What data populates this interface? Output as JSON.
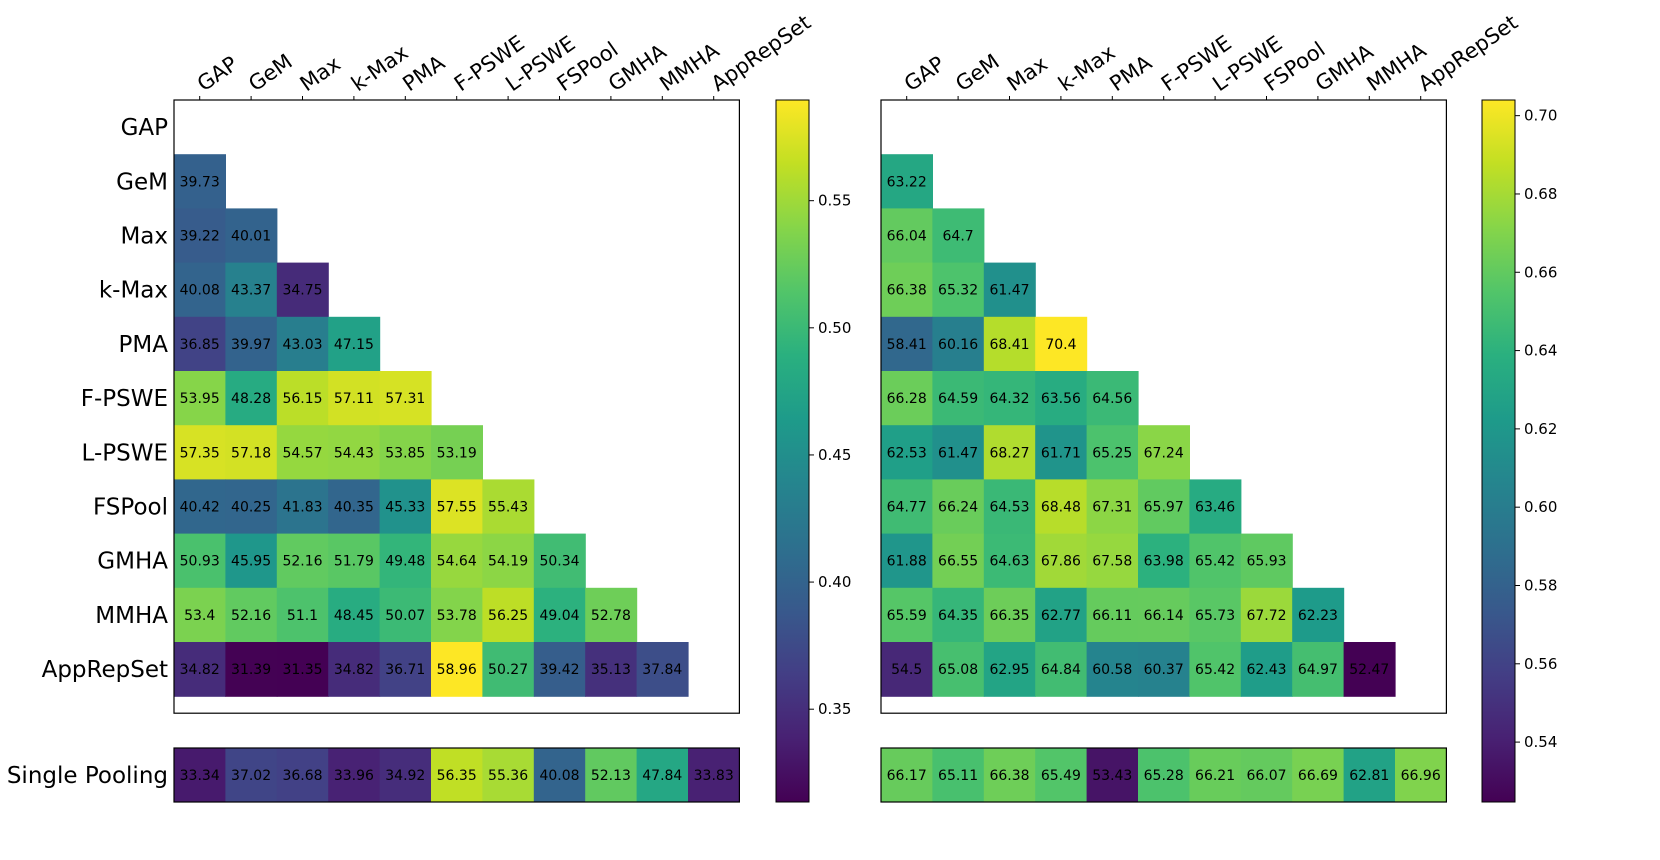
{
  "chart_data": [
    {
      "type": "heatmap",
      "title": "",
      "row_labels": [
        "GAP",
        "GeM",
        "Max",
        "k-Max",
        "PMA",
        "F-PSWE",
        "L-PSWE",
        "FSPool",
        "GMHA",
        "MMHA",
        "AppRepSet"
      ],
      "col_labels": [
        "GAP",
        "GeM",
        "Max",
        "k-Max",
        "PMA",
        "F-PSWE",
        "L-PSWE",
        "FSPool",
        "GMHA",
        "MMHA",
        "AppRepSet"
      ],
      "values": [
        [],
        [
          39.73
        ],
        [
          39.22,
          40.01
        ],
        [
          40.08,
          43.37,
          34.75
        ],
        [
          36.85,
          39.97,
          43.03,
          47.15
        ],
        [
          53.95,
          48.28,
          56.15,
          57.11,
          57.31
        ],
        [
          57.35,
          57.18,
          54.57,
          54.43,
          53.85,
          53.19
        ],
        [
          40.42,
          40.25,
          41.83,
          40.35,
          45.33,
          57.55,
          55.43
        ],
        [
          50.93,
          45.95,
          52.16,
          51.79,
          49.48,
          54.64,
          54.19,
          50.34
        ],
        [
          53.4,
          52.16,
          51.1,
          48.45,
          50.07,
          53.78,
          56.25,
          49.04,
          52.78
        ],
        [
          34.82,
          31.39,
          31.35,
          34.82,
          36.71,
          58.96,
          50.27,
          39.42,
          35.13,
          37.84
        ]
      ],
      "single_label": "Single Pooling",
      "single_values": [
        33.34,
        37.02,
        36.68,
        33.96,
        34.92,
        56.35,
        55.36,
        40.08,
        52.13,
        47.84,
        33.83
      ],
      "colormap": "viridis",
      "vmin": 0.3135,
      "vmax": 0.5896,
      "colorbar_ticks": [
        0.35,
        0.4,
        0.45,
        0.5,
        0.55
      ],
      "colorbar_tick_labels": [
        "0.35",
        "0.40",
        "0.45",
        "0.50",
        "0.55"
      ]
    },
    {
      "type": "heatmap",
      "title": "",
      "row_labels": [
        "GAP",
        "GeM",
        "Max",
        "k-Max",
        "PMA",
        "F-PSWE",
        "L-PSWE",
        "FSPool",
        "GMHA",
        "MMHA",
        "AppRepSet"
      ],
      "col_labels": [
        "GAP",
        "GeM",
        "Max",
        "k-Max",
        "PMA",
        "F-PSWE",
        "L-PSWE",
        "FSPool",
        "GMHA",
        "MMHA",
        "AppRepSet"
      ],
      "values": [
        [],
        [
          63.22
        ],
        [
          66.04,
          64.7
        ],
        [
          66.38,
          65.32,
          61.47
        ],
        [
          58.41,
          60.16,
          68.41,
          70.4
        ],
        [
          66.28,
          64.59,
          64.32,
          63.56,
          64.56
        ],
        [
          62.53,
          61.47,
          68.27,
          61.71,
          65.25,
          67.24
        ],
        [
          64.77,
          66.24,
          64.53,
          68.48,
          67.31,
          65.97,
          63.46
        ],
        [
          61.88,
          66.55,
          64.63,
          67.86,
          67.58,
          63.98,
          65.42,
          65.93
        ],
        [
          65.59,
          64.35,
          66.35,
          62.77,
          66.11,
          66.14,
          65.73,
          67.72,
          62.23
        ],
        [
          54.5,
          65.08,
          62.95,
          64.84,
          60.58,
          60.37,
          65.42,
          62.43,
          64.97,
          52.47
        ]
      ],
      "single_label": "Single Pooling",
      "single_values": [
        66.17,
        65.11,
        66.38,
        65.49,
        53.43,
        65.28,
        66.21,
        66.07,
        66.69,
        62.81,
        66.96
      ],
      "colormap": "viridis",
      "vmin": 0.5247,
      "vmax": 0.704,
      "colorbar_ticks": [
        0.54,
        0.56,
        0.58,
        0.6,
        0.62,
        0.64,
        0.66,
        0.68,
        0.7
      ],
      "colorbar_tick_labels": [
        "0.54",
        "0.56",
        "0.58",
        "0.60",
        "0.62",
        "0.64",
        "0.66",
        "0.68",
        "0.70"
      ]
    }
  ]
}
